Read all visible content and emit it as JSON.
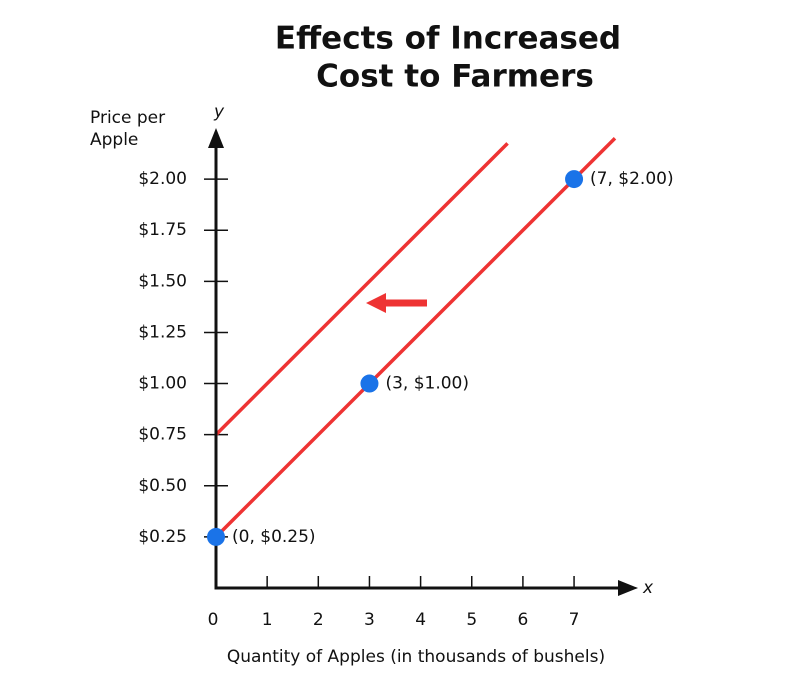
{
  "chart_data": {
    "type": "line",
    "title": [
      "Effects of Increased",
      "Cost to Farmers"
    ],
    "xlabel": "Quantity of Apples (in thousands of bushels)",
    "ylabel": [
      "Price per",
      "Apple"
    ],
    "x_axis_symbol": "x",
    "y_axis_symbol": "y",
    "series": [
      {
        "color": "#ee3333",
        "x": [
          0,
          7.8
        ],
        "values": [
          0.25,
          2.2
        ]
      },
      {
        "color": "#ee3333",
        "x": [
          0,
          5.7
        ],
        "values": [
          0.75,
          2.175
        ]
      }
    ],
    "points": {
      "color": "#1a73e8",
      "x": [
        0,
        3,
        7
      ],
      "values": [
        0.25,
        1,
        2
      ],
      "value_labels": [
        "(0, $0.25)",
        "(3, $1.00)",
        "(7, $2.00)"
      ]
    },
    "xlim": [
      0,
      8.25
    ],
    "ylim": [
      0,
      2.25
    ],
    "xticks": [
      0,
      1,
      2,
      3,
      4,
      5,
      6,
      7
    ],
    "yticks": [
      {
        "value": 0.25,
        "label": "$0.25"
      },
      {
        "value": 0.5,
        "label": "$0.50"
      },
      {
        "value": 0.75,
        "label": "$0.75"
      },
      {
        "value": 1,
        "label": "$1.00"
      },
      {
        "value": 1.25,
        "label": "$1.25"
      },
      {
        "value": 1.5,
        "label": "$1.50"
      },
      {
        "value": 1.75,
        "label": "$1.75"
      },
      {
        "value": 2,
        "label": "$2.00"
      }
    ]
  }
}
